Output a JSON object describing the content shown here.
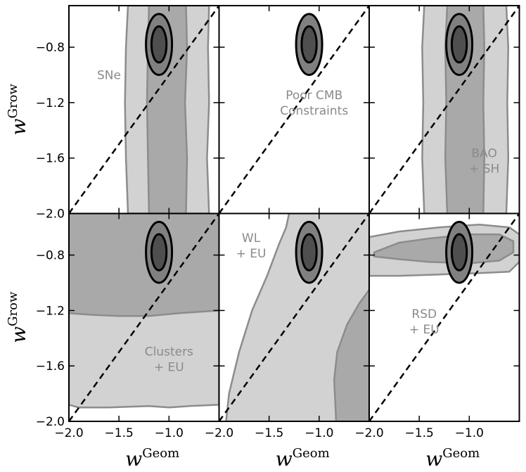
{
  "colors": {
    "light": "#d2d2d2",
    "mid": "#a9a9a9",
    "dark_fill": "#808080",
    "darkest_fill": "#4f4f4f",
    "region_edge": "#8c8c8c",
    "annotation": "#8a8a8a",
    "frame": "#000000"
  },
  "chart_data": {
    "type": "contour-grid",
    "rows": 2,
    "cols": 3,
    "xlim": [
      -2.0,
      -0.5
    ],
    "ylim": [
      -2.0,
      -0.5
    ],
    "x_ticks": [
      -2.0,
      -1.5,
      -1.0
    ],
    "x_tick_labels": [
      "−2.0",
      "−1.5",
      "−1.0"
    ],
    "y_ticks": [
      -2.0,
      -1.6,
      -1.2,
      -0.8
    ],
    "y_tick_labels": [
      "−2.0",
      "−1.6",
      "−1.2",
      "−0.8"
    ],
    "xlabel": {
      "base": "w",
      "sup": "Geom"
    },
    "ylabel": {
      "base": "w",
      "sup": "Grow"
    },
    "diagonal": {
      "from": [
        -2.0,
        -2.0
      ],
      "to": [
        -0.5,
        -0.5
      ],
      "style": "dashed"
    },
    "reference_ellipses": {
      "center": [
        -1.1,
        -0.78
      ],
      "inner_half_widths": [
        0.075,
        0.13
      ],
      "outer_half_widths": [
        0.13,
        0.22
      ]
    },
    "panels": [
      {
        "id": "sne",
        "labels": [
          "SNe"
        ],
        "label_pos": [
          -1.6,
          -1.0
        ],
        "regions": [
          {
            "level": "light",
            "points": [
              [
                -1.41,
                -2.0
              ],
              [
                -1.43,
                -1.6
              ],
              [
                -1.44,
                -1.2
              ],
              [
                -1.43,
                -0.8
              ],
              [
                -1.41,
                -0.5
              ],
              [
                -0.6,
                -0.5
              ],
              [
                -0.61,
                -0.8
              ],
              [
                -0.6,
                -1.2
              ],
              [
                -0.62,
                -1.6
              ],
              [
                -0.6,
                -2.0
              ]
            ]
          },
          {
            "level": "mid",
            "points": [
              [
                -1.2,
                -2.0
              ],
              [
                -1.21,
                -1.6
              ],
              [
                -1.22,
                -1.2
              ],
              [
                -1.21,
                -0.8
              ],
              [
                -1.2,
                -0.5
              ],
              [
                -0.83,
                -0.5
              ],
              [
                -0.82,
                -0.8
              ],
              [
                -0.84,
                -1.2
              ],
              [
                -0.82,
                -1.6
              ],
              [
                -0.83,
                -2.0
              ]
            ]
          }
        ]
      },
      {
        "id": "cmb",
        "labels": [
          "Poor CMB",
          "Constraints"
        ],
        "label_pos": [
          -1.05,
          -1.2
        ],
        "regions": []
      },
      {
        "id": "bao",
        "labels": [
          "BAO",
          "+ SH"
        ],
        "label_pos": [
          -0.85,
          -1.62
        ],
        "regions": [
          {
            "level": "light",
            "points": [
              [
                -1.45,
                -2.0
              ],
              [
                -1.47,
                -1.6
              ],
              [
                -1.46,
                -1.2
              ],
              [
                -1.47,
                -0.8
              ],
              [
                -1.45,
                -0.5
              ],
              [
                -0.63,
                -0.5
              ],
              [
                -0.61,
                -0.8
              ],
              [
                -0.62,
                -1.2
              ],
              [
                -0.61,
                -1.6
              ],
              [
                -0.63,
                -2.0
              ]
            ]
          },
          {
            "level": "mid",
            "points": [
              [
                -1.22,
                -2.0
              ],
              [
                -1.24,
                -1.6
              ],
              [
                -1.23,
                -1.2
              ],
              [
                -1.24,
                -0.8
              ],
              [
                -1.22,
                -0.5
              ],
              [
                -0.86,
                -0.5
              ],
              [
                -0.85,
                -0.8
              ],
              [
                -0.86,
                -1.2
              ],
              [
                -0.85,
                -1.6
              ],
              [
                -0.86,
                -2.0
              ]
            ]
          }
        ]
      },
      {
        "id": "clusters",
        "labels": [
          "Clusters",
          "+ EU"
        ],
        "label_pos": [
          -1.0,
          -1.55
        ],
        "regions": [
          {
            "level": "light",
            "points": [
              [
                -2.0,
                -0.5
              ],
              [
                -0.5,
                -0.5
              ],
              [
                -0.5,
                -1.88
              ],
              [
                -0.8,
                -1.89
              ],
              [
                -1.0,
                -1.9
              ],
              [
                -1.2,
                -1.89
              ],
              [
                -1.6,
                -1.9
              ],
              [
                -1.9,
                -1.9
              ],
              [
                -2.0,
                -1.88
              ]
            ]
          },
          {
            "level": "mid",
            "points": [
              [
                -2.0,
                -0.5
              ],
              [
                -0.5,
                -0.5
              ],
              [
                -0.5,
                -1.2
              ],
              [
                -0.9,
                -1.22
              ],
              [
                -1.2,
                -1.24
              ],
              [
                -1.5,
                -1.24
              ],
              [
                -1.8,
                -1.23
              ],
              [
                -2.0,
                -1.22
              ]
            ]
          }
        ]
      },
      {
        "id": "wl",
        "labels": [
          "WL",
          "+ EU"
        ],
        "label_pos": [
          -1.68,
          -0.73
        ],
        "regions": [
          {
            "level": "light",
            "points": [
              [
                -1.3,
                -0.5
              ],
              [
                -0.5,
                -0.5
              ],
              [
                -0.5,
                -2.0
              ],
              [
                -1.93,
                -2.0
              ],
              [
                -1.9,
                -1.8
              ],
              [
                -1.8,
                -1.5
              ],
              [
                -1.67,
                -1.2
              ],
              [
                -1.52,
                -0.95
              ],
              [
                -1.4,
                -0.72
              ],
              [
                -1.33,
                -0.6
              ]
            ]
          },
          {
            "level": "mid",
            "points": [
              [
                -0.5,
                -1.05
              ],
              [
                -0.6,
                -1.15
              ],
              [
                -0.72,
                -1.3
              ],
              [
                -0.82,
                -1.5
              ],
              [
                -0.85,
                -1.7
              ],
              [
                -0.83,
                -2.0
              ],
              [
                -0.5,
                -2.0
              ]
            ]
          }
        ]
      },
      {
        "id": "rsd",
        "labels": [
          "RSD",
          "+ EU"
        ],
        "label_pos": [
          -1.45,
          -1.28
        ],
        "regions": [
          {
            "level": "light",
            "points": [
              [
                -2.0,
                -0.67
              ],
              [
                -1.7,
                -0.63
              ],
              [
                -1.3,
                -0.6
              ],
              [
                -0.9,
                -0.58
              ],
              [
                -0.6,
                -0.6
              ],
              [
                -0.5,
                -0.65
              ],
              [
                -0.5,
                -0.85
              ],
              [
                -0.6,
                -0.92
              ],
              [
                -0.9,
                -0.93
              ],
              [
                -1.3,
                -0.94
              ],
              [
                -1.7,
                -0.95
              ],
              [
                -2.0,
                -0.95
              ]
            ]
          },
          {
            "level": "mid",
            "points": [
              [
                -1.95,
                -0.78
              ],
              [
                -1.7,
                -0.71
              ],
              [
                -1.4,
                -0.68
              ],
              [
                -1.0,
                -0.65
              ],
              [
                -0.7,
                -0.65
              ],
              [
                -0.56,
                -0.7
              ],
              [
                -0.56,
                -0.78
              ],
              [
                -0.7,
                -0.84
              ],
              [
                -1.0,
                -0.86
              ],
              [
                -1.4,
                -0.85
              ],
              [
                -1.7,
                -0.83
              ],
              [
                -1.95,
                -0.81
              ]
            ]
          }
        ]
      }
    ]
  }
}
